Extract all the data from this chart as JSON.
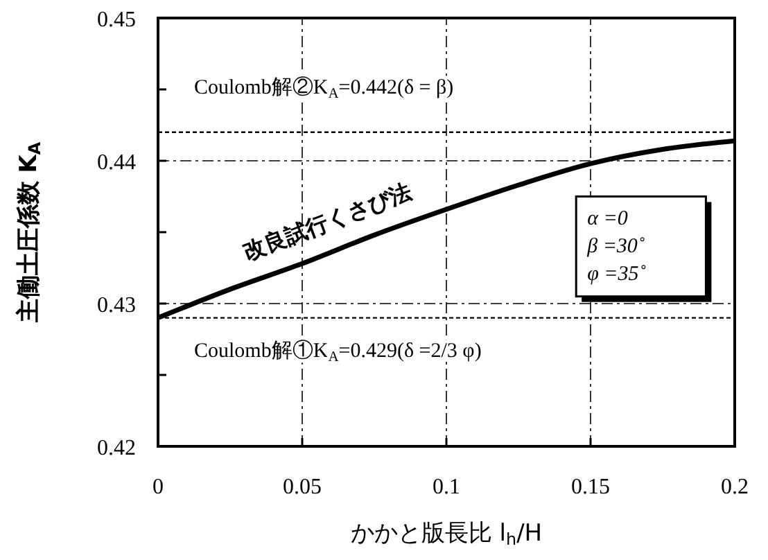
{
  "chart_data": {
    "type": "line",
    "xlabel": "かかと版長比 l$_{h}$/H",
    "ylabel": "主働土圧係数 K$_{A}$",
    "x": [
      0,
      0.025,
      0.05,
      0.075,
      0.1,
      0.125,
      0.15,
      0.175,
      0.2
    ],
    "series": [
      {
        "name": "改良試行くさび法",
        "color": "#000000",
        "values": [
          0.429,
          0.431,
          0.4328,
          0.4348,
          0.4366,
          0.4383,
          0.4398,
          0.4408,
          0.4414
        ]
      }
    ],
    "xlim": [
      0,
      0.2
    ],
    "xticks": [
      0,
      0.05,
      0.1,
      0.15,
      0.2
    ],
    "ylim": [
      0.42,
      0.45
    ],
    "yticks": [
      0.42,
      {
        "value": 0.425,
        "label": null
      },
      0.43,
      {
        "value": 0.435,
        "label": null
      },
      0.44,
      {
        "value": 0.445,
        "label": null
      },
      0.45
    ],
    "grid": true,
    "marker": "none",
    "line_style": "solid",
    "ref_lines": [
      {
        "axis": "y",
        "value": 0.442,
        "label": "Coulomb解②K$_{A}$=0.442(δ = β)",
        "color": "#000000"
      },
      {
        "axis": "y",
        "value": 0.429,
        "label": "Coulomb解①K$_{A}$=0.429(δ =2/3 φ)",
        "color": "#000000"
      }
    ],
    "annotations": [
      "α =0",
      "β =30˚",
      "φ =35˚"
    ]
  }
}
